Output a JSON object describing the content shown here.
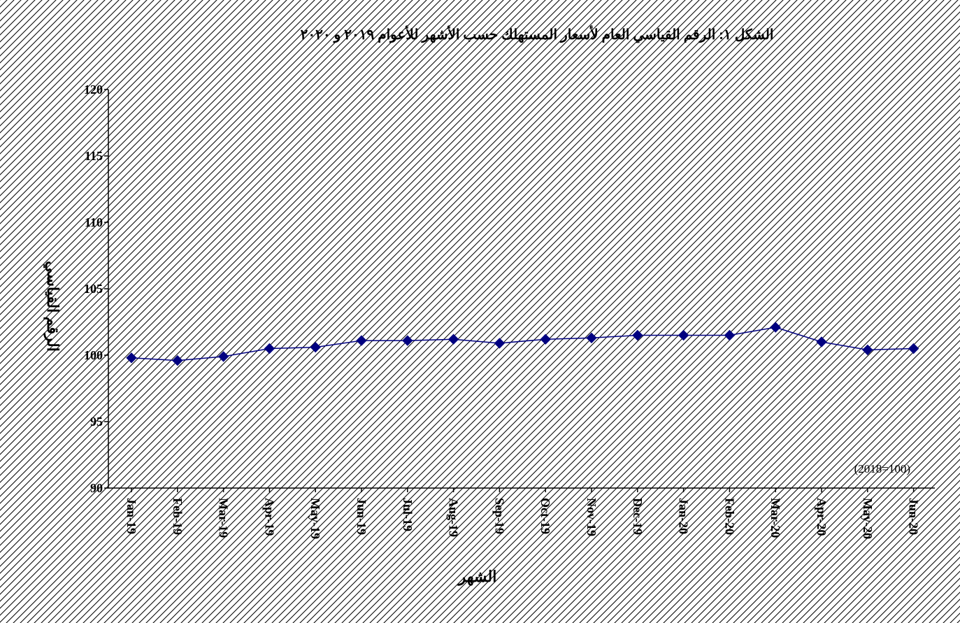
{
  "chart_data": {
    "type": "line",
    "title": "الشكل ١: الرقم القياسي العام لأسعار المستهلك حسب الأشهر للأعوام ٢٠١٩ و ٢٠٢٠",
    "xlabel": "الشهر",
    "ylabel": "الرقم القياسي",
    "note": "(2018=100)",
    "categories": [
      "Jan-19",
      "Feb-19",
      "Mar-19",
      "Apr-19",
      "May-19",
      "Jun-19",
      "Jul-19",
      "Aug-19",
      "Sep-19",
      "Oct-19",
      "Nov-19",
      "Dec-19",
      "Jan-20",
      "Feb-20",
      "Mar-20",
      "Apr-20",
      "May-20",
      "Jun-20"
    ],
    "series": [
      {
        "values": [
          99.8,
          99.6,
          99.9,
          100.5,
          100.6,
          101.1,
          101.1,
          101.2,
          100.9,
          101.2,
          101.3,
          101.5,
          101.5,
          101.5,
          102.1,
          101.0,
          100.4,
          100.5
        ],
        "color": "#000080",
        "marker": "diamond"
      }
    ],
    "ylim": [
      90,
      120
    ],
    "yticks": [
      "90",
      "95",
      "100",
      "105",
      "110",
      "115",
      "120"
    ],
    "grid": false,
    "legend": "none",
    "background_pattern": "diagonal-hatch"
  }
}
